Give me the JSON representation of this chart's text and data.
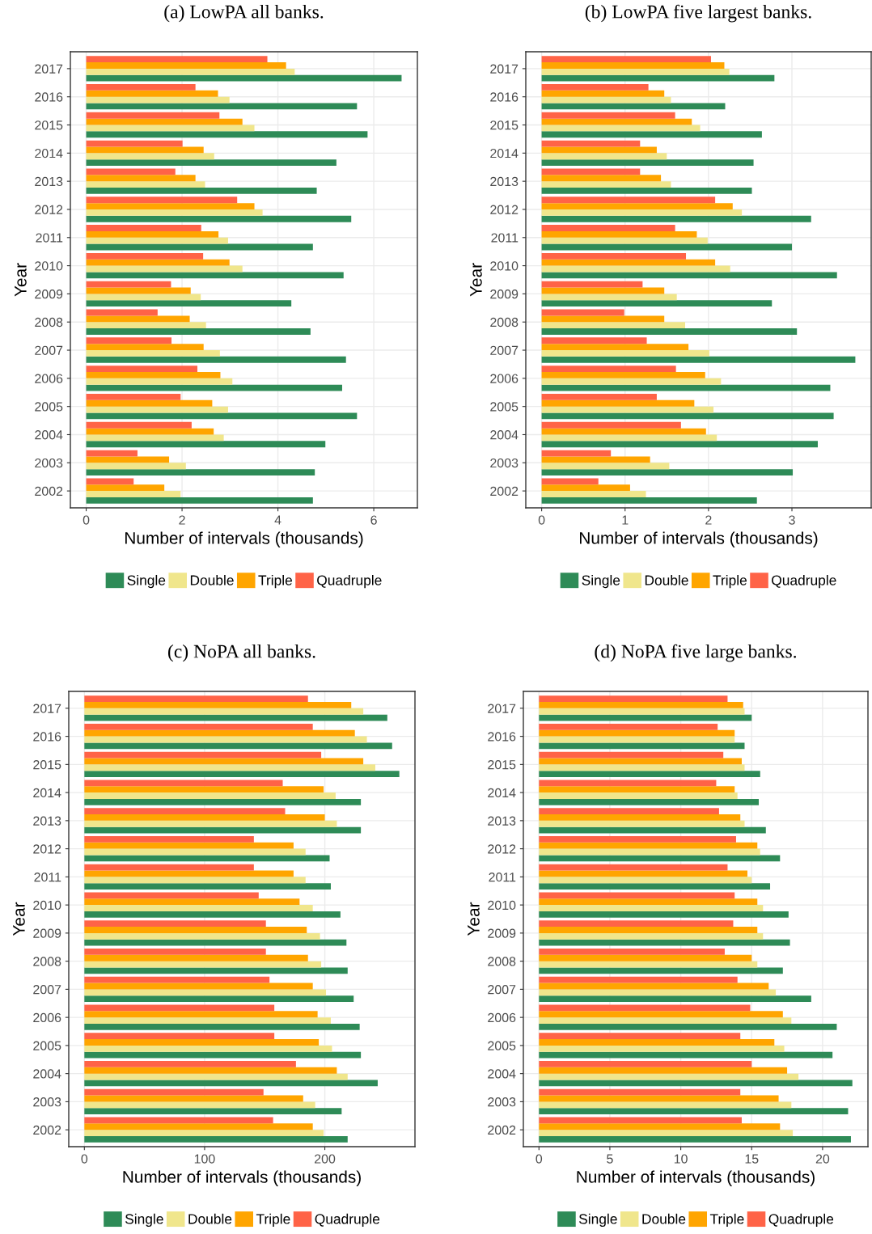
{
  "chart_data": [
    {
      "type": "bar",
      "orientation": "horizontal",
      "title": "(a) LowPA all banks.",
      "xlabel": "Number of intervals (thousands)",
      "ylabel": "Year",
      "categories": [
        "2017",
        "2016",
        "2015",
        "2014",
        "2013",
        "2012",
        "2011",
        "2010",
        "2009",
        "2008",
        "2007",
        "2006",
        "2005",
        "2004",
        "2003",
        "2002"
      ],
      "series": [
        {
          "name": "Single",
          "color": "#2e8b57",
          "values": [
            6.58,
            5.65,
            5.87,
            5.22,
            4.81,
            5.53,
            4.73,
            5.37,
            4.28,
            4.68,
            5.42,
            5.34,
            5.65,
            4.99,
            4.77,
            4.73
          ]
        },
        {
          "name": "Double",
          "color": "#f0e68c",
          "values": [
            4.35,
            2.99,
            3.51,
            2.67,
            2.48,
            3.68,
            2.96,
            3.26,
            2.39,
            2.5,
            2.79,
            3.05,
            2.96,
            2.87,
            2.08,
            1.97
          ]
        },
        {
          "name": "Triple",
          "color": "#ffa500",
          "values": [
            4.17,
            2.75,
            3.26,
            2.45,
            2.28,
            3.51,
            2.76,
            2.99,
            2.18,
            2.16,
            2.45,
            2.8,
            2.63,
            2.66,
            1.73,
            1.63
          ]
        },
        {
          "name": "Quadruple",
          "color": "#ff6347",
          "values": [
            3.78,
            2.28,
            2.78,
            2.01,
            1.86,
            3.15,
            2.4,
            2.44,
            1.77,
            1.49,
            1.78,
            2.32,
            1.97,
            2.2,
            1.07,
            0.99
          ]
        }
      ],
      "xlim": [
        -0.33,
        6.91
      ],
      "xticks": [
        0,
        2,
        4,
        6
      ],
      "grid": true,
      "legend": "bottom"
    },
    {
      "type": "bar",
      "orientation": "horizontal",
      "title": "(b) LowPA five largest banks.",
      "xlabel": "Number of intervals (thousands)",
      "ylabel": "Year",
      "categories": [
        "2017",
        "2016",
        "2015",
        "2014",
        "2013",
        "2012",
        "2011",
        "2010",
        "2009",
        "2008",
        "2007",
        "2006",
        "2005",
        "2004",
        "2003",
        "2002"
      ],
      "series": [
        {
          "name": "Single",
          "color": "#2e8b57",
          "values": [
            2.79,
            2.2,
            2.64,
            2.54,
            2.52,
            3.23,
            3.0,
            3.54,
            2.76,
            3.06,
            3.76,
            3.46,
            3.5,
            3.31,
            3.01,
            2.58
          ]
        },
        {
          "name": "Double",
          "color": "#f0e68c",
          "values": [
            2.25,
            1.55,
            1.9,
            1.5,
            1.55,
            2.4,
            1.99,
            2.26,
            1.62,
            1.72,
            2.01,
            2.15,
            2.06,
            2.1,
            1.53,
            1.25
          ]
        },
        {
          "name": "Triple",
          "color": "#ffa500",
          "values": [
            2.19,
            1.47,
            1.8,
            1.38,
            1.43,
            2.29,
            1.86,
            2.08,
            1.47,
            1.47,
            1.76,
            1.96,
            1.83,
            1.97,
            1.3,
            1.06
          ]
        },
        {
          "name": "Quadruple",
          "color": "#ff6347",
          "values": [
            2.03,
            1.28,
            1.6,
            1.18,
            1.18,
            2.08,
            1.6,
            1.73,
            1.21,
            0.99,
            1.26,
            1.61,
            1.38,
            1.67,
            0.83,
            0.68
          ]
        }
      ],
      "xlim": [
        -0.19,
        3.95
      ],
      "xticks": [
        0,
        1,
        2,
        3
      ],
      "grid": true,
      "legend": "bottom"
    },
    {
      "type": "bar",
      "orientation": "horizontal",
      "title": "(c) NoPA all banks.",
      "xlabel": "Number of intervals (thousands)",
      "ylabel": "Year",
      "categories": [
        "2017",
        "2016",
        "2015",
        "2014",
        "2013",
        "2012",
        "2011",
        "2010",
        "2009",
        "2008",
        "2007",
        "2006",
        "2005",
        "2004",
        "2003",
        "2002"
      ],
      "series": [
        {
          "name": "Single",
          "color": "#2e8b57",
          "values": [
            252,
            256,
            262,
            230,
            230,
            204,
            205,
            213,
            218,
            219,
            224,
            229,
            230,
            244,
            214,
            219
          ]
        },
        {
          "name": "Double",
          "color": "#f0e68c",
          "values": [
            232,
            235,
            242,
            209,
            210,
            184,
            184,
            190,
            196,
            197,
            201,
            205,
            206,
            219,
            192,
            199
          ]
        },
        {
          "name": "Triple",
          "color": "#ffa500",
          "values": [
            222,
            225,
            232,
            199,
            200,
            174,
            174,
            179,
            185,
            186,
            190,
            194,
            195,
            210,
            182,
            190
          ]
        },
        {
          "name": "Quadruple",
          "color": "#ff6347",
          "values": [
            186,
            190,
            197,
            165,
            167,
            141,
            141,
            145,
            151,
            151,
            154,
            158,
            158,
            176,
            149,
            157
          ]
        }
      ],
      "xlim": [
        -13,
        275
      ],
      "xticks": [
        0,
        100,
        200
      ],
      "grid": true,
      "legend": "bottom"
    },
    {
      "type": "bar",
      "orientation": "horizontal",
      "title": "(d) NoPA five large banks.",
      "xlabel": "Number of intervals (thousands)",
      "ylabel": "Year",
      "categories": [
        "2017",
        "2016",
        "2015",
        "2014",
        "2013",
        "2012",
        "2011",
        "2010",
        "2009",
        "2008",
        "2007",
        "2006",
        "2005",
        "2004",
        "2003",
        "2002"
      ],
      "series": [
        {
          "name": "Single",
          "color": "#2e8b57",
          "values": [
            15.0,
            14.5,
            15.6,
            15.5,
            16.0,
            17.0,
            16.3,
            17.6,
            17.7,
            17.2,
            19.2,
            21.0,
            20.7,
            22.1,
            21.8,
            22.0
          ]
        },
        {
          "name": "Double",
          "color": "#f0e68c",
          "values": [
            14.5,
            13.8,
            14.5,
            14.0,
            14.5,
            15.6,
            15.0,
            15.8,
            15.8,
            15.4,
            16.7,
            17.8,
            17.3,
            18.3,
            17.8,
            17.9
          ]
        },
        {
          "name": "Triple",
          "color": "#ffa500",
          "values": [
            14.4,
            13.8,
            14.3,
            13.8,
            14.2,
            15.4,
            14.7,
            15.4,
            15.4,
            15.0,
            16.2,
            17.2,
            16.6,
            17.5,
            16.9,
            17.0
          ]
        },
        {
          "name": "Quadruple",
          "color": "#ff6347",
          "values": [
            13.3,
            12.6,
            13.0,
            12.5,
            12.7,
            13.9,
            13.3,
            13.8,
            13.7,
            13.1,
            14.0,
            14.9,
            14.2,
            15.0,
            14.2,
            14.3
          ]
        }
      ],
      "xlim": [
        -1.1,
        23.2
      ],
      "xticks": [
        0,
        5,
        10,
        15,
        20
      ],
      "grid": true,
      "legend": "bottom"
    }
  ]
}
